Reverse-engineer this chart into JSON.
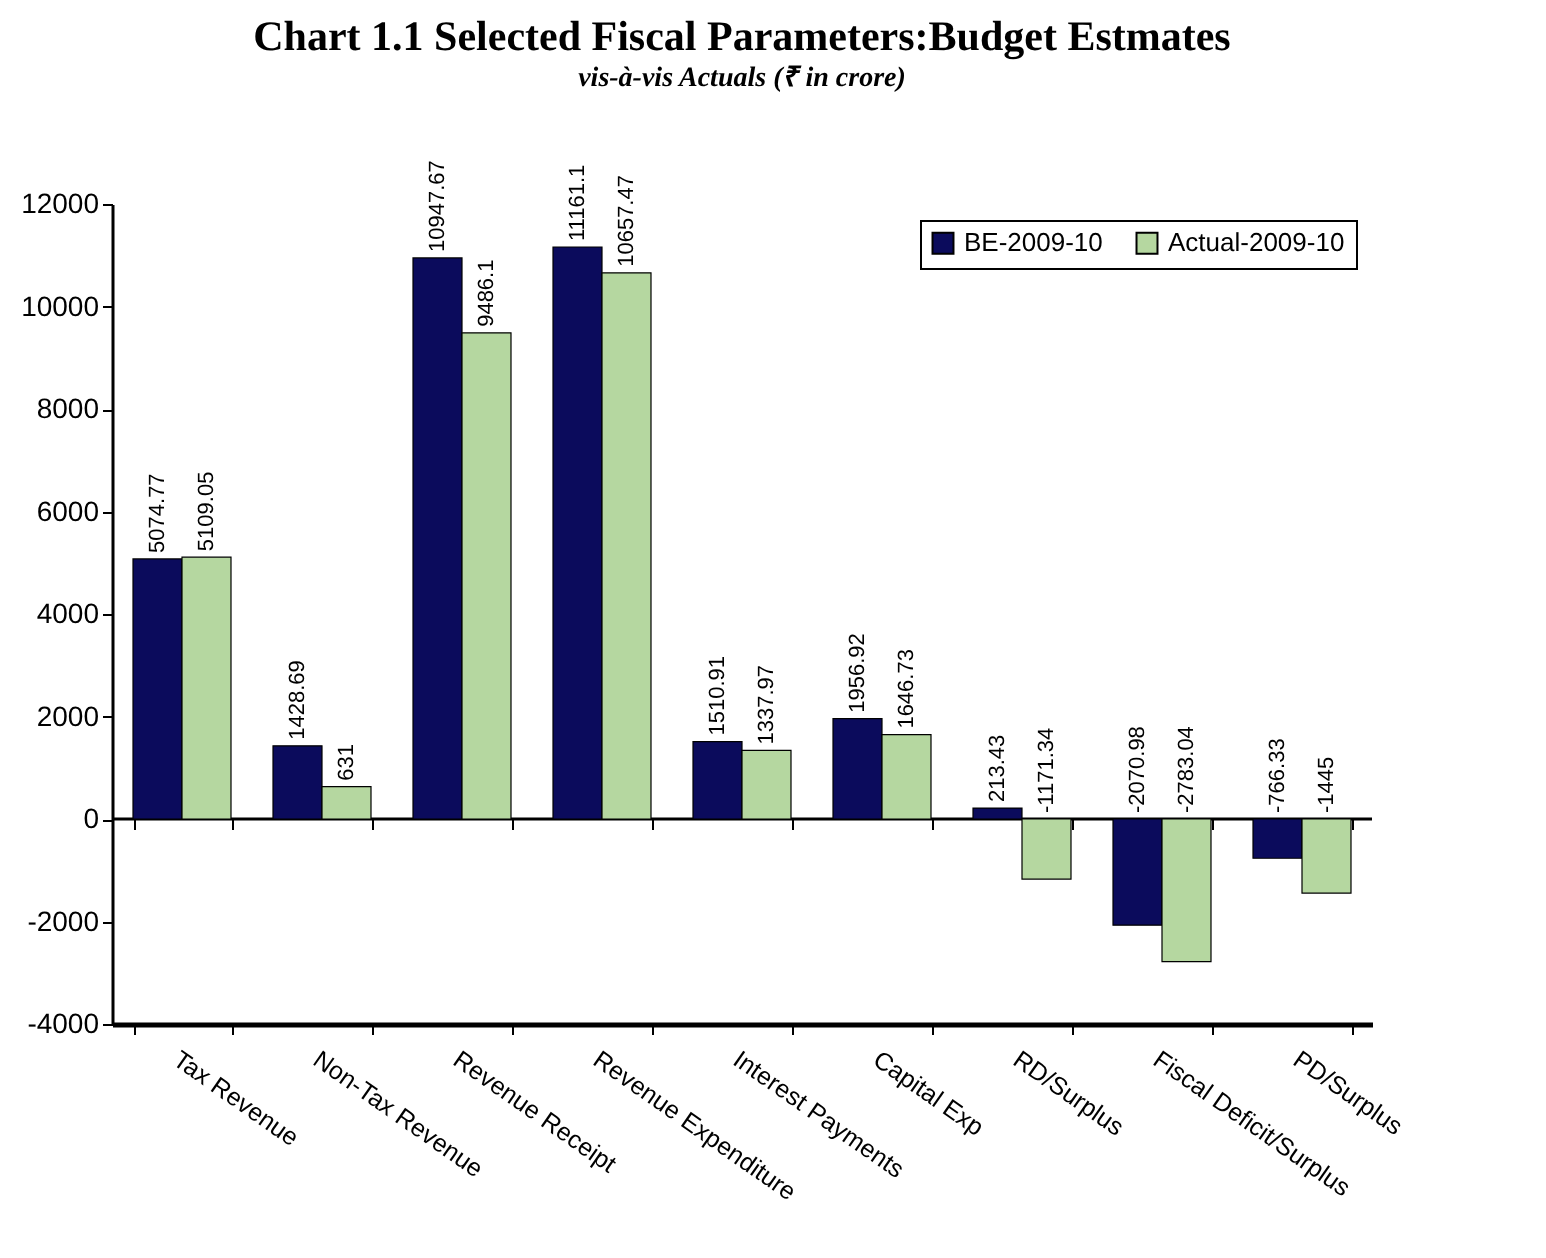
{
  "chart_data": {
    "type": "bar",
    "title": "Chart 1.1 Selected Fiscal Parameters:Budget Estmates",
    "subtitle": "vis-à-vis Actuals (₹ in crore)",
    "categories": [
      "Tax Revenue",
      "Non-Tax Revenue",
      "Revenue Receipt",
      "Revenue Expenditure",
      "Interest Payments",
      "Capital Exp",
      "RD/Surplus",
      "Fiscal Deficit/Surplus",
      "PD/Surplus"
    ],
    "series": [
      {
        "name": "BE-2009-10",
        "color": "#0b0b5c",
        "values": [
          5074.77,
          1428.69,
          10947.67,
          11161.1,
          1510.91,
          1956.92,
          213.43,
          -2070.98,
          -766.33
        ]
      },
      {
        "name": "Actual-2009-10",
        "color": "#b5d7a0",
        "values": [
          5109.05,
          631,
          9486.1,
          10657.47,
          1337.97,
          1646.73,
          -1171.34,
          -2783.04,
          -1445
        ]
      }
    ],
    "ylim": [
      -4000,
      12000
    ],
    "yticks": [
      -4000,
      -2000,
      0,
      2000,
      4000,
      6000,
      8000,
      10000,
      12000
    ],
    "ref_lines": [
      {
        "axis": "y",
        "value": 0,
        "color": "#000000",
        "line_style": "solid"
      }
    ],
    "grid": false,
    "legend": "top right",
    "data_labels": true
  }
}
